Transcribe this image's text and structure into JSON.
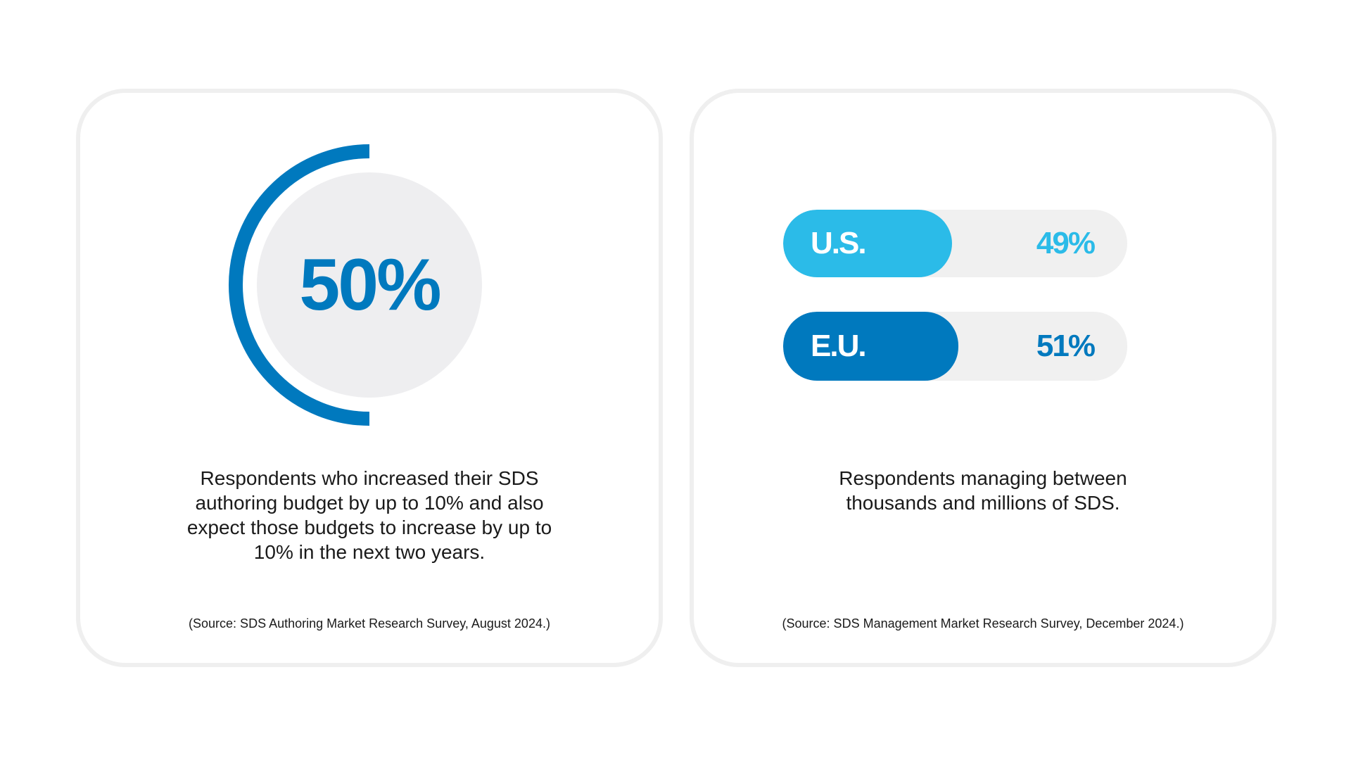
{
  "colors": {
    "primary": "#0079be",
    "secondary": "#2bbbe8",
    "track": "#f0f0f0",
    "circle": "#eeeef0"
  },
  "left_card": {
    "value_label": "50%",
    "value": 50,
    "description": [
      "Respondents who increased their SDS",
      "authoring budget by up to 10% and also",
      "expect those budgets to increase by up to",
      "10%  in the next two years."
    ],
    "source": "(Source: SDS Authoring Market Research Survey, August 2024.)"
  },
  "right_card": {
    "bars": [
      {
        "label": "U.S.",
        "value": 49,
        "value_label": "49%",
        "color": "#2bbbe8"
      },
      {
        "label": "E.U.",
        "value": 51,
        "value_label": "51%",
        "color": "#0079be"
      }
    ],
    "description": [
      "Respondents managing between",
      "thousands and millions of SDS."
    ],
    "source": "(Source: SDS Management Market Research Survey, December 2024.)"
  }
}
